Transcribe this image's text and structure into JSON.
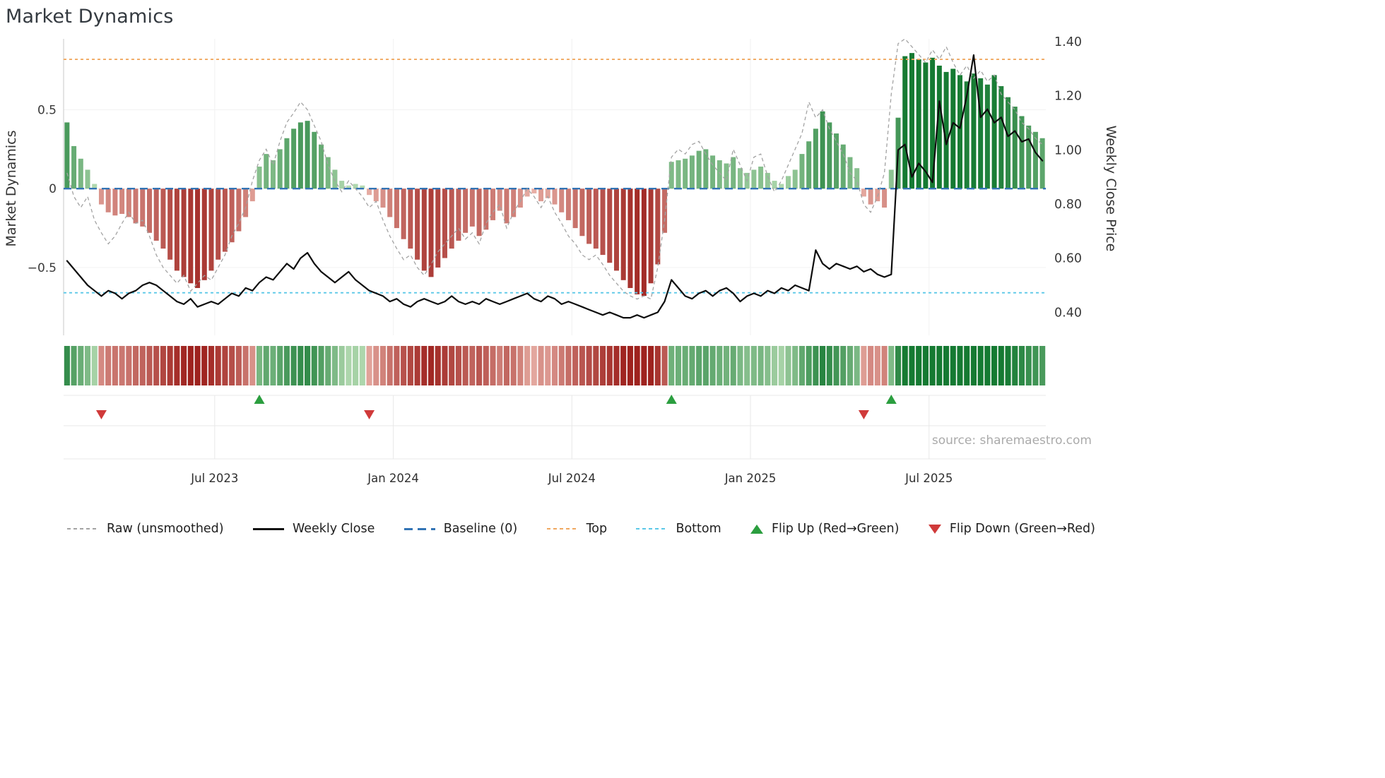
{
  "title": "Market Dynamics",
  "source_text": "source: sharemaestro.com",
  "axes": {
    "left_label": "Market Dynamics",
    "right_label": "Weekly Close Price",
    "left_ticks": [
      {
        "v": 0.5,
        "label": "0.5"
      },
      {
        "v": 0,
        "label": "0"
      },
      {
        "v": -0.5,
        "label": "−0.5"
      }
    ],
    "right_ticks": [
      {
        "v": 1.4,
        "label": "1.40"
      },
      {
        "v": 1.2,
        "label": "1.20"
      },
      {
        "v": 1.0,
        "label": "1.00"
      },
      {
        "v": 0.8,
        "label": "0.80"
      },
      {
        "v": 0.6,
        "label": "0.60"
      },
      {
        "v": 0.4,
        "label": "0.40"
      }
    ],
    "x_ticks": [
      {
        "i": 22,
        "label": "Jul 2023"
      },
      {
        "i": 48,
        "label": "Jan 2024"
      },
      {
        "i": 74,
        "label": "Jul 2024"
      },
      {
        "i": 100,
        "label": "Jan 2025"
      },
      {
        "i": 126,
        "label": "Jul 2025"
      }
    ]
  },
  "chart_data": {
    "type": "bar",
    "title": "Market Dynamics",
    "x_unit": "weeks (Feb 2023 – Oct 2025)",
    "x_tick_labels": [
      "Jul 2023",
      "Jan 2024",
      "Jul 2024",
      "Jan 2025",
      "Jul 2025"
    ],
    "left_ylim": [
      -0.93,
      0.95
    ],
    "right_ylim": [
      0.315,
      1.41
    ],
    "series": [
      {
        "name": "Market Dynamics (smoothed oscillator bars)",
        "type": "bar",
        "axis": "left",
        "values": [
          0.42,
          0.27,
          0.19,
          0.12,
          0.03,
          -0.1,
          -0.15,
          -0.17,
          -0.16,
          -0.18,
          -0.22,
          -0.24,
          -0.28,
          -0.33,
          -0.38,
          -0.45,
          -0.52,
          -0.56,
          -0.6,
          -0.63,
          -0.58,
          -0.52,
          -0.45,
          -0.4,
          -0.34,
          -0.27,
          -0.18,
          -0.08,
          0.14,
          0.22,
          0.18,
          0.25,
          0.32,
          0.38,
          0.42,
          0.43,
          0.36,
          0.28,
          0.2,
          0.12,
          0.05,
          0.02,
          0.03,
          0.02,
          -0.04,
          -0.08,
          -0.12,
          -0.18,
          -0.25,
          -0.32,
          -0.38,
          -0.45,
          -0.52,
          -0.56,
          -0.5,
          -0.44,
          -0.38,
          -0.33,
          -0.28,
          -0.24,
          -0.3,
          -0.26,
          -0.2,
          -0.14,
          -0.22,
          -0.18,
          -0.12,
          -0.05,
          -0.03,
          -0.08,
          -0.06,
          -0.1,
          -0.15,
          -0.2,
          -0.25,
          -0.3,
          -0.35,
          -0.38,
          -0.42,
          -0.47,
          -0.52,
          -0.58,
          -0.63,
          -0.67,
          -0.68,
          -0.6,
          -0.48,
          -0.28,
          0.17,
          0.18,
          0.19,
          0.21,
          0.24,
          0.25,
          0.21,
          0.18,
          0.16,
          0.2,
          0.13,
          0.1,
          0.12,
          0.14,
          0.1,
          0.05,
          0.03,
          0.08,
          0.12,
          0.22,
          0.3,
          0.38,
          0.49,
          0.42,
          0.35,
          0.28,
          0.2,
          0.13,
          -0.05,
          -0.1,
          -0.08,
          -0.12,
          0.12,
          0.45,
          0.84,
          0.86,
          0.82,
          0.8,
          0.83,
          0.78,
          0.74,
          0.76,
          0.72,
          0.68,
          0.73,
          0.7,
          0.66,
          0.72,
          0.65,
          0.58,
          0.52,
          0.46,
          0.4,
          0.36,
          0.32
        ]
      },
      {
        "name": "Raw (unsmoothed)",
        "type": "line",
        "axis": "left",
        "values": [
          0.1,
          -0.05,
          -0.12,
          -0.05,
          -0.2,
          -0.28,
          -0.35,
          -0.3,
          -0.22,
          -0.15,
          -0.22,
          -0.2,
          -0.3,
          -0.42,
          -0.5,
          -0.55,
          -0.6,
          -0.55,
          -0.65,
          -0.6,
          -0.55,
          -0.58,
          -0.5,
          -0.42,
          -0.3,
          -0.22,
          -0.12,
          0.05,
          0.18,
          0.25,
          0.15,
          0.3,
          0.42,
          0.48,
          0.55,
          0.5,
          0.4,
          0.3,
          0.15,
          0.05,
          -0.02,
          0.05,
          0.0,
          -0.05,
          -0.12,
          -0.08,
          -0.2,
          -0.3,
          -0.38,
          -0.45,
          -0.42,
          -0.5,
          -0.55,
          -0.48,
          -0.4,
          -0.35,
          -0.3,
          -0.25,
          -0.32,
          -0.28,
          -0.35,
          -0.22,
          -0.15,
          -0.1,
          -0.25,
          -0.15,
          -0.08,
          0.0,
          -0.05,
          -0.12,
          -0.05,
          -0.15,
          -0.22,
          -0.3,
          -0.35,
          -0.42,
          -0.45,
          -0.42,
          -0.48,
          -0.55,
          -0.6,
          -0.65,
          -0.68,
          -0.7,
          -0.68,
          -0.7,
          -0.5,
          -0.2,
          0.2,
          0.25,
          0.22,
          0.28,
          0.3,
          0.22,
          0.15,
          0.1,
          0.05,
          0.25,
          0.15,
          0.05,
          0.2,
          0.22,
          0.08,
          -0.02,
          0.05,
          0.15,
          0.25,
          0.35,
          0.55,
          0.45,
          0.5,
          0.38,
          0.3,
          0.22,
          0.1,
          0.05,
          -0.1,
          -0.15,
          -0.05,
          0.1,
          0.6,
          0.92,
          0.95,
          0.9,
          0.85,
          0.8,
          0.88,
          0.82,
          0.9,
          0.8,
          0.72,
          0.78,
          0.7,
          0.75,
          0.68,
          0.72,
          0.6,
          0.55,
          0.5,
          0.42,
          0.38,
          0.32,
          0.28
        ]
      },
      {
        "name": "Weekly Close",
        "type": "line",
        "axis": "right",
        "values": [
          0.59,
          0.56,
          0.53,
          0.5,
          0.48,
          0.46,
          0.48,
          0.47,
          0.45,
          0.47,
          0.48,
          0.5,
          0.51,
          0.5,
          0.48,
          0.46,
          0.44,
          0.43,
          0.45,
          0.42,
          0.43,
          0.44,
          0.43,
          0.45,
          0.47,
          0.46,
          0.49,
          0.48,
          0.51,
          0.53,
          0.52,
          0.55,
          0.58,
          0.56,
          0.6,
          0.62,
          0.58,
          0.55,
          0.53,
          0.51,
          0.53,
          0.55,
          0.52,
          0.5,
          0.48,
          0.47,
          0.46,
          0.44,
          0.45,
          0.43,
          0.42,
          0.44,
          0.45,
          0.44,
          0.43,
          0.44,
          0.46,
          0.44,
          0.43,
          0.44,
          0.43,
          0.45,
          0.44,
          0.43,
          0.44,
          0.45,
          0.46,
          0.47,
          0.45,
          0.44,
          0.46,
          0.45,
          0.43,
          0.44,
          0.43,
          0.42,
          0.41,
          0.4,
          0.39,
          0.4,
          0.39,
          0.38,
          0.38,
          0.39,
          0.38,
          0.39,
          0.4,
          0.44,
          0.52,
          0.49,
          0.46,
          0.45,
          0.47,
          0.48,
          0.46,
          0.48,
          0.49,
          0.47,
          0.44,
          0.46,
          0.47,
          0.46,
          0.48,
          0.47,
          0.49,
          0.48,
          0.5,
          0.49,
          0.48,
          0.63,
          0.58,
          0.56,
          0.58,
          0.57,
          0.56,
          0.57,
          0.55,
          0.56,
          0.54,
          0.53,
          0.54,
          1.0,
          1.02,
          0.9,
          0.95,
          0.92,
          0.88,
          1.18,
          1.02,
          1.1,
          1.08,
          1.2,
          1.35,
          1.12,
          1.15,
          1.1,
          1.12,
          1.05,
          1.07,
          1.03,
          1.04,
          0.99,
          0.96
        ]
      }
    ],
    "reference_lines": [
      {
        "name": "Baseline (0)",
        "value": 0,
        "axis": "left"
      },
      {
        "name": "Top",
        "value": 0.82,
        "axis": "left"
      },
      {
        "name": "Bottom",
        "value": -0.66,
        "axis": "left"
      }
    ],
    "flip_markers": [
      {
        "i": 5,
        "dir": "down"
      },
      {
        "i": 28,
        "dir": "up"
      },
      {
        "i": 44,
        "dir": "down"
      },
      {
        "i": 88,
        "dir": "up"
      },
      {
        "i": 116,
        "dir": "down"
      },
      {
        "i": 120,
        "dir": "up"
      }
    ]
  },
  "legend": [
    {
      "label": "Raw (unsmoothed)",
      "glyph": "dash",
      "color": "#a3a3a3"
    },
    {
      "label": "Weekly Close",
      "glyph": "solid",
      "color": "#111111"
    },
    {
      "label": "Baseline (0)",
      "glyph": "longdash",
      "color": "#3274b5"
    },
    {
      "label": "Top",
      "glyph": "dash",
      "color": "#f0a860"
    },
    {
      "label": "Bottom",
      "glyph": "dash",
      "color": "#5bc8e8"
    },
    {
      "label": "Flip Up (Red→Green)",
      "glyph": "tri-up",
      "color": "#2b9e3f"
    },
    {
      "label": "Flip Down (Green→Red)",
      "glyph": "tri-down",
      "color": "#d03a3a"
    }
  ],
  "colors": {
    "baseline": "#3274b5",
    "top": "#f0a860",
    "bottom": "#5bc8e8",
    "raw_line": "#a3a3a3",
    "close_line": "#0d0d0d",
    "flip_up": "#2b9e3f",
    "flip_down": "#d03a3a",
    "green_dark": "#157a32",
    "green_light": "#c9e7c2",
    "red_dark": "#9e221e",
    "red_light": "#f4c7bd",
    "grid": "#e8e8e8",
    "spine": "#c9c9c9",
    "tick_text": "#3a3a3a"
  }
}
